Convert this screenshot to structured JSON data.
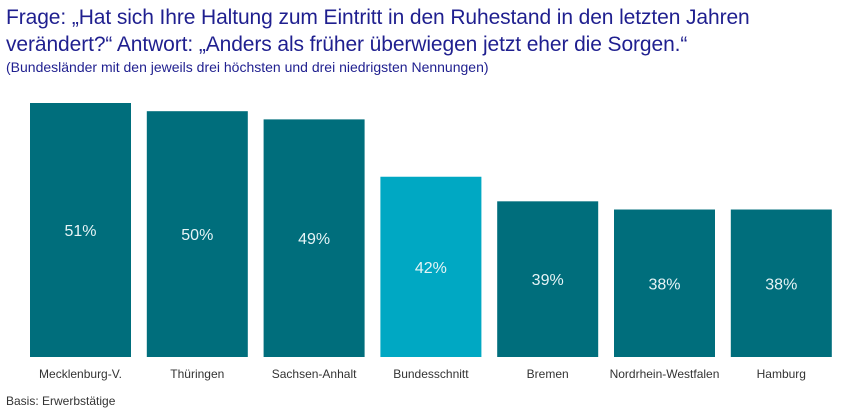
{
  "chart_data": {
    "type": "bar",
    "title": "Frage: „Hat sich Ihre Haltung zum Eintritt in den Ruhestand in den letzten Jahren verändert?“ Antwort: „Anders als früher überwiegen jetzt eher die Sorgen.“",
    "subtitle": "(Bundesländer mit den jeweils drei höchsten und drei niedrigsten Nennungen)",
    "categories": [
      "Mecklenburg-V.",
      "Thüringen",
      "Sachsen-Anhalt",
      "Bundesschnitt",
      "Bremen",
      "Nordrhein-Westfalen",
      "Hamburg"
    ],
    "values": [
      51,
      50,
      49,
      42,
      39,
      38,
      38
    ],
    "data_labels": [
      "51%",
      "50%",
      "49%",
      "42%",
      "39%",
      "38%",
      "38%"
    ],
    "highlight_category": "Bundesschnitt",
    "colors": {
      "default": "#006e7c",
      "highlight": "#00a8c3",
      "title": "#1f1f8f"
    },
    "ylim": [
      20,
      51
    ],
    "grid": false,
    "footnote": "Basis: Erwerbstätige"
  }
}
